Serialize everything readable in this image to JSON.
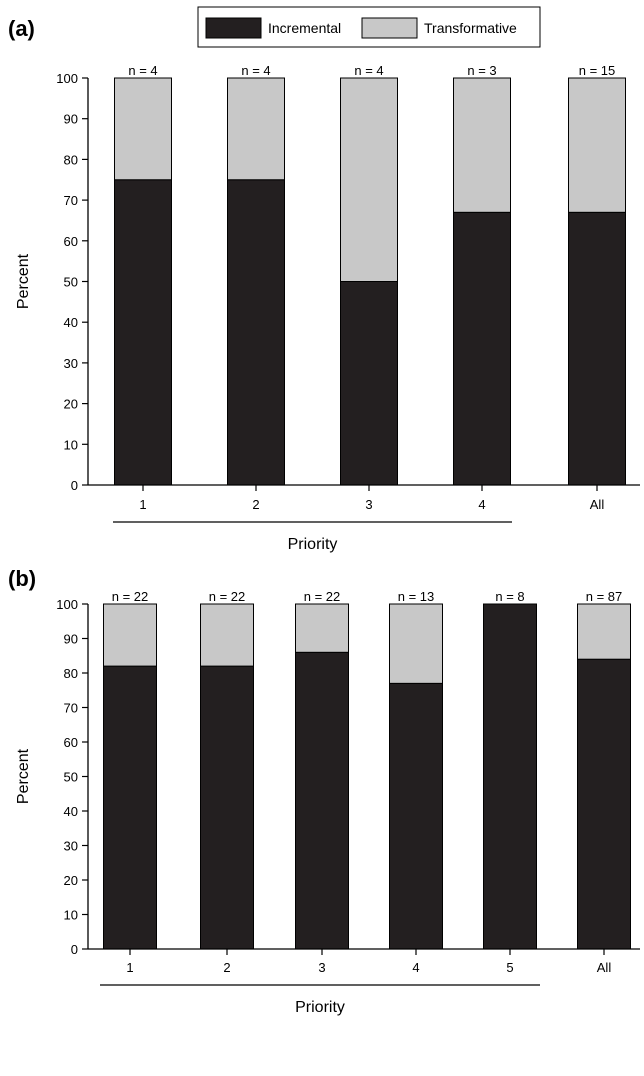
{
  "legend": {
    "entries": [
      {
        "name": "Incremental",
        "color": "#231f20"
      },
      {
        "name": "Transformative",
        "color": "#c8c8c8"
      }
    ]
  },
  "chart_data": [
    {
      "type": "bar",
      "stacked": true,
      "panel_label": "(a)",
      "categories": [
        "1",
        "2",
        "3",
        "4",
        "All"
      ],
      "n_labels": [
        "n = 4",
        "n = 4",
        "n = 4",
        "n = 3",
        "n = 15"
      ],
      "series": [
        {
          "name": "Incremental",
          "values": [
            75,
            75,
            50,
            67,
            67
          ]
        },
        {
          "name": "Transformative",
          "values": [
            25,
            25,
            50,
            33,
            33
          ]
        }
      ],
      "xlabel": "Priority",
      "ylabel": "Percent",
      "ylim": [
        0,
        100
      ],
      "yticks": [
        0,
        10,
        20,
        30,
        40,
        50,
        60,
        70,
        80,
        90,
        100
      ],
      "priority_group_span": [
        "1",
        "4"
      ]
    },
    {
      "type": "bar",
      "stacked": true,
      "panel_label": "(b)",
      "categories": [
        "1",
        "2",
        "3",
        "4",
        "5",
        "All"
      ],
      "n_labels": [
        "n = 22",
        "n = 22",
        "n = 22",
        "n = 13",
        "n = 8",
        "n = 87"
      ],
      "series": [
        {
          "name": "Incremental",
          "values": [
            82,
            82,
            86,
            77,
            100,
            84
          ]
        },
        {
          "name": "Transformative",
          "values": [
            18,
            18,
            14,
            23,
            0,
            16
          ]
        }
      ],
      "xlabel": "Priority",
      "ylabel": "Percent",
      "ylim": [
        0,
        100
      ],
      "yticks": [
        0,
        10,
        20,
        30,
        40,
        50,
        60,
        70,
        80,
        90,
        100
      ],
      "priority_group_span": [
        "1",
        "5"
      ]
    }
  ]
}
